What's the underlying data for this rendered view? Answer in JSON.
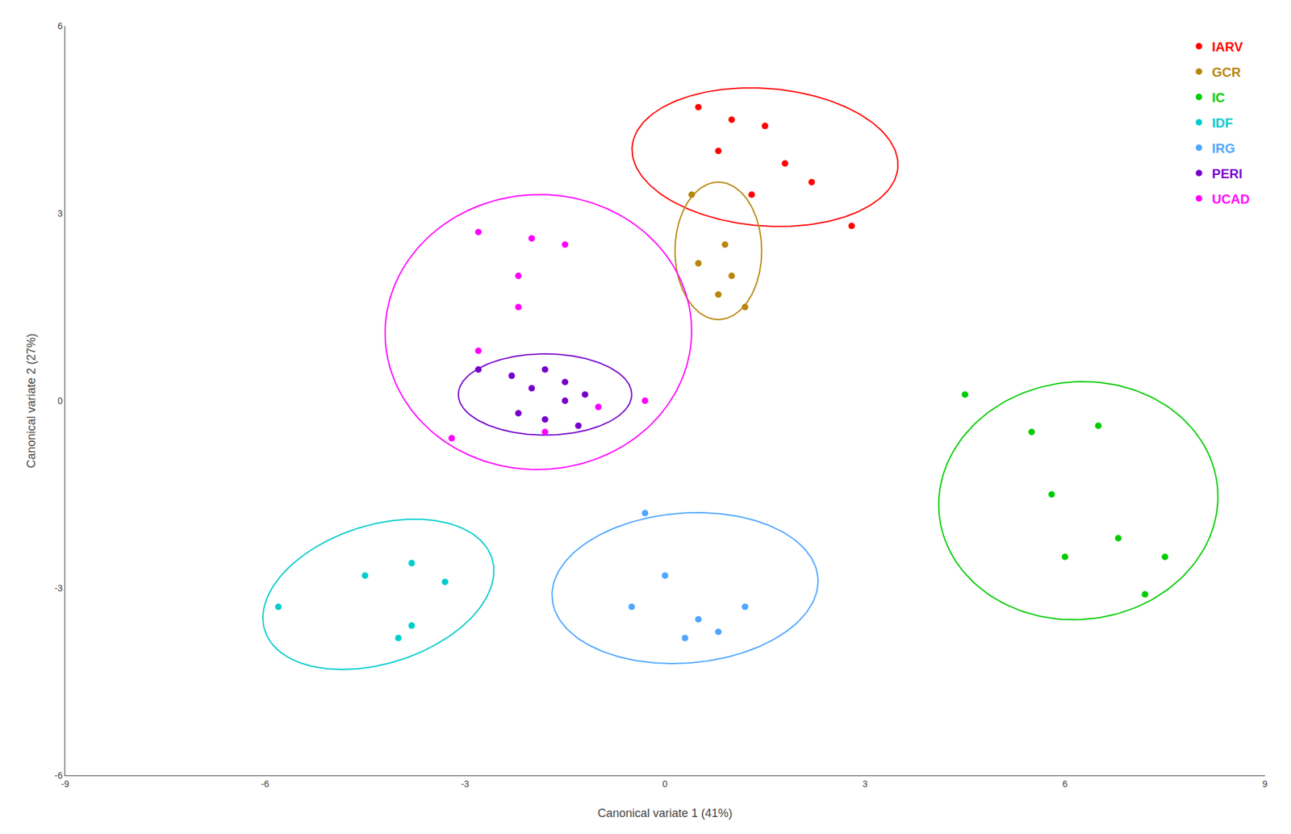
{
  "chart_data": {
    "type": "scatter",
    "xlabel": "Canonical variate 1 (41%)",
    "ylabel": "Canonical variate 2 (27%)",
    "xlim": [
      -9,
      9
    ],
    "ylim": [
      -6,
      6
    ],
    "xticks": [
      -9,
      -6,
      -3,
      0,
      3,
      6,
      9
    ],
    "yticks": [
      -6,
      -3,
      0,
      3,
      6
    ],
    "grid": false,
    "legend": "upper right",
    "series": [
      {
        "name": "IARV",
        "color": "#ff0000",
        "x": [
          0.5,
          1.0,
          1.5,
          0.8,
          1.8,
          2.2,
          1.3,
          2.8
        ],
        "values": [
          4.7,
          4.5,
          4.4,
          4.0,
          3.8,
          3.5,
          3.3,
          2.8
        ],
        "ellipse": {
          "cx": 1.5,
          "cy": 3.9,
          "rx": 2.0,
          "ry": 1.1,
          "angle": -5
        }
      },
      {
        "name": "GCR",
        "color": "#b8860b",
        "x": [
          0.4,
          0.9,
          0.5,
          1.0,
          0.8,
          1.2
        ],
        "values": [
          3.3,
          2.5,
          2.2,
          2.0,
          1.7,
          1.5
        ],
        "ellipse": {
          "cx": 0.8,
          "cy": 2.4,
          "rx": 0.65,
          "ry": 1.1,
          "angle": 0
        }
      },
      {
        "name": "IC",
        "color": "#00cc00",
        "x": [
          4.5,
          5.5,
          6.5,
          5.8,
          6.8,
          7.2,
          7.5,
          6.0
        ],
        "values": [
          0.1,
          -0.5,
          -0.4,
          -1.5,
          -2.2,
          -3.1,
          -2.5,
          -2.5
        ],
        "ellipse": {
          "cx": 6.2,
          "cy": -1.6,
          "rx": 2.1,
          "ry": 1.9,
          "angle": 10
        }
      },
      {
        "name": "IDF",
        "color": "#00cccc",
        "x": [
          -5.8,
          -4.5,
          -3.8,
          -3.3,
          -4.0,
          -3.8
        ],
        "values": [
          -3.3,
          -2.8,
          -2.6,
          -2.9,
          -3.8,
          -3.6
        ],
        "ellipse": {
          "cx": -4.3,
          "cy": -3.1,
          "rx": 1.8,
          "ry": 1.1,
          "angle": 20
        }
      },
      {
        "name": "IRG",
        "color": "#4da6ff",
        "x": [
          -0.3,
          0.0,
          -0.5,
          0.5,
          1.2,
          0.8,
          0.3
        ],
        "values": [
          -1.8,
          -2.8,
          -3.3,
          -3.5,
          -3.3,
          -3.7,
          -3.8
        ],
        "ellipse": {
          "cx": 0.3,
          "cy": -3.0,
          "rx": 2.0,
          "ry": 1.2,
          "angle": 5
        }
      },
      {
        "name": "PERI",
        "color": "#7700cc",
        "x": [
          -2.8,
          -2.3,
          -1.8,
          -1.5,
          -2.0,
          -1.5,
          -1.2,
          -2.2,
          -1.8,
          -1.3
        ],
        "values": [
          0.5,
          0.4,
          0.5,
          0.3,
          0.2,
          0.0,
          0.1,
          -0.2,
          -0.3,
          -0.4
        ],
        "ellipse": {
          "cx": -1.8,
          "cy": 0.1,
          "rx": 1.3,
          "ry": 0.65,
          "angle": 0
        }
      },
      {
        "name": "UCAD",
        "color": "#ff00ff",
        "x": [
          -2.8,
          -2.0,
          -1.5,
          -2.2,
          -2.8,
          -3.2,
          -1.0,
          -0.3,
          -1.8,
          -2.2
        ],
        "values": [
          2.7,
          2.6,
          2.5,
          2.0,
          0.8,
          -0.6,
          -0.1,
          0.0,
          -0.5,
          1.5
        ],
        "ellipse": {
          "cx": -1.9,
          "cy": 1.1,
          "rx": 2.3,
          "ry": 2.2,
          "angle": 5
        }
      }
    ]
  }
}
